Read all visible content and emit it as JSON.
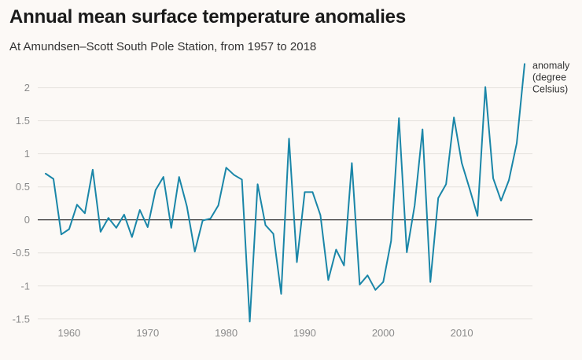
{
  "colors": {
    "background": "#fcf9f6",
    "line": "#1a86a8",
    "grid": "#e5e2de",
    "zero_line": "#222222",
    "tick_text": "#8a8a8a"
  },
  "chart_data": {
    "type": "line",
    "title": "Annual mean surface temperature anomalies",
    "subtitle": "At Amundsen–Scott South Pole Station, from 1957 to 2018",
    "xlabel": "",
    "ylabel": "",
    "xlim": [
      1956,
      2019
    ],
    "ylim": [
      -1.55,
      2.4
    ],
    "grid": "horizontal",
    "legend": "none",
    "x_ticks": [
      1960,
      1970,
      1980,
      1990,
      2000,
      2010
    ],
    "x_tick_labels": [
      "1960",
      "1970",
      "1980",
      "1990",
      "2000",
      "2010"
    ],
    "y_ticks": [
      2,
      1.5,
      1,
      0.5,
      0,
      -0.5,
      -1,
      -1.5
    ],
    "y_tick_labels": [
      "2",
      "1.5",
      "1",
      "0.5",
      "0",
      "-0.5",
      "-1",
      "-1.5"
    ],
    "series": [
      {
        "name_lines": [
          "anomaly",
          "(degree",
          "Celsius)"
        ],
        "x": [
          1957,
          1958,
          1959,
          1960,
          1961,
          1962,
          1963,
          1964,
          1965,
          1966,
          1967,
          1968,
          1969,
          1970,
          1971,
          1972,
          1973,
          1974,
          1975,
          1976,
          1977,
          1978,
          1979,
          1980,
          1981,
          1982,
          1983,
          1984,
          1985,
          1986,
          1987,
          1988,
          1989,
          1990,
          1991,
          1992,
          1993,
          1994,
          1995,
          1996,
          1997,
          1998,
          1999,
          2000,
          2001,
          2002,
          2003,
          2004,
          2005,
          2006,
          2007,
          2008,
          2009,
          2010,
          2011,
          2012,
          2013,
          2014,
          2015,
          2016,
          2017,
          2018
        ],
        "y": [
          0.7,
          0.62,
          -0.22,
          -0.14,
          0.23,
          0.1,
          0.76,
          -0.18,
          0.03,
          -0.12,
          0.08,
          -0.26,
          0.15,
          -0.11,
          0.45,
          0.65,
          -0.12,
          0.65,
          0.2,
          -0.48,
          -0.01,
          0.02,
          0.22,
          0.79,
          0.68,
          0.61,
          -1.54,
          0.54,
          -0.08,
          -0.21,
          -1.12,
          1.23,
          -0.64,
          0.42,
          0.42,
          0.07,
          -0.91,
          -0.45,
          -0.69,
          0.86,
          -0.98,
          -0.84,
          -1.06,
          -0.94,
          -0.32,
          1.54,
          -0.49,
          0.22,
          1.37,
          -0.94,
          0.33,
          0.54,
          1.55,
          0.86,
          0.47,
          0.06,
          2.01,
          0.63,
          0.29,
          0.6,
          1.16,
          2.36
        ]
      }
    ]
  }
}
